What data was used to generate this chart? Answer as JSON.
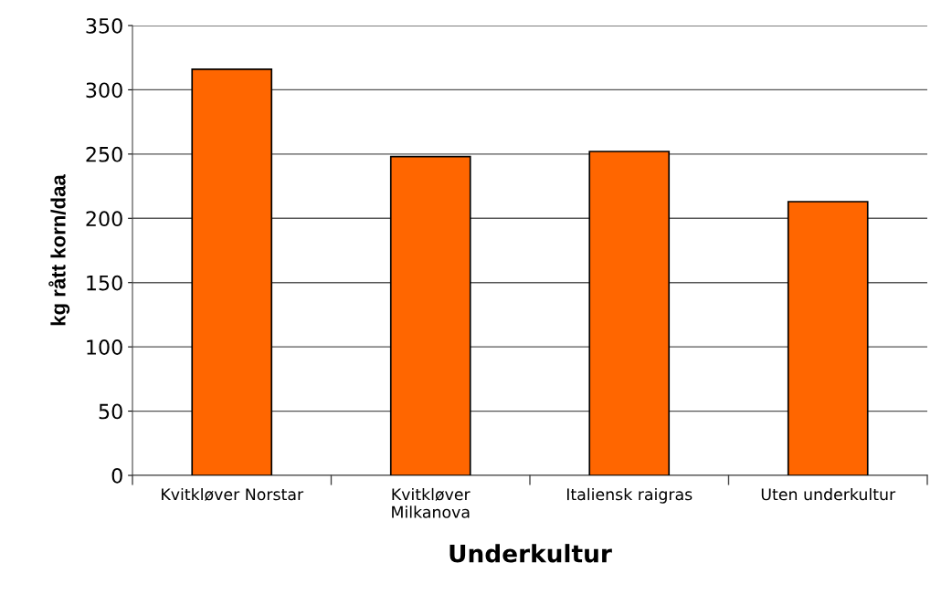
{
  "chart_data": {
    "type": "bar",
    "xlabel": "Underkultur",
    "ylabel": "kg rått korn/daa",
    "categories": [
      "Kvitkløver Norstar",
      "Kvitkløver\nMilkanova",
      "Italiensk raigras",
      "Uten underkultur"
    ],
    "values": [
      316,
      248,
      252,
      213
    ],
    "color": "#ff6600",
    "ylim": [
      0,
      350
    ],
    "yticks": [
      0,
      50,
      100,
      150,
      200,
      250,
      300,
      350
    ],
    "grid": "y"
  }
}
